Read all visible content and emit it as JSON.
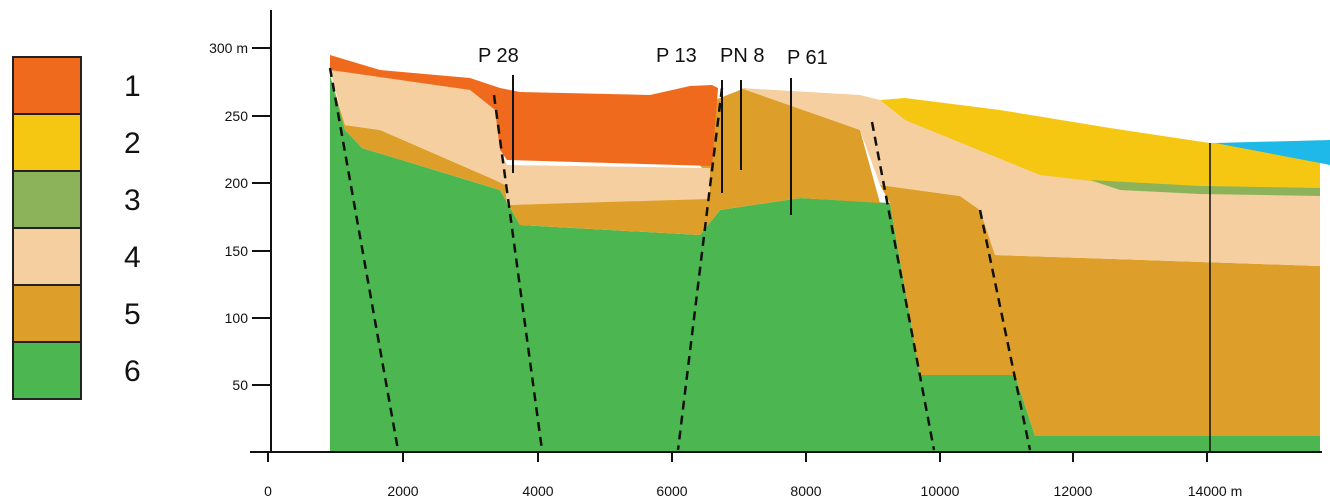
{
  "legend": [
    {
      "label": "1",
      "color": "#f06a1e"
    },
    {
      "label": "2",
      "color": "#f5c713"
    },
    {
      "label": "3",
      "color": "#8cb35a"
    },
    {
      "label": "4",
      "color": "#f5cf9f"
    },
    {
      "label": "5",
      "color": "#dd9f2a"
    },
    {
      "label": "6",
      "color": "#4cb650"
    }
  ],
  "water_color": "#1eb9e8",
  "y_axis": {
    "ticks": [
      "300 m",
      "250",
      "200",
      "150",
      "100",
      "50"
    ]
  },
  "x_axis": {
    "ticks": [
      "0",
      "2000",
      "4000",
      "6000",
      "8000",
      "10000",
      "12000",
      "14000 m"
    ]
  },
  "wells": [
    {
      "label": "P 28"
    },
    {
      "label": "P 13"
    },
    {
      "label": "PN 8"
    },
    {
      "label": "P 61"
    }
  ]
}
